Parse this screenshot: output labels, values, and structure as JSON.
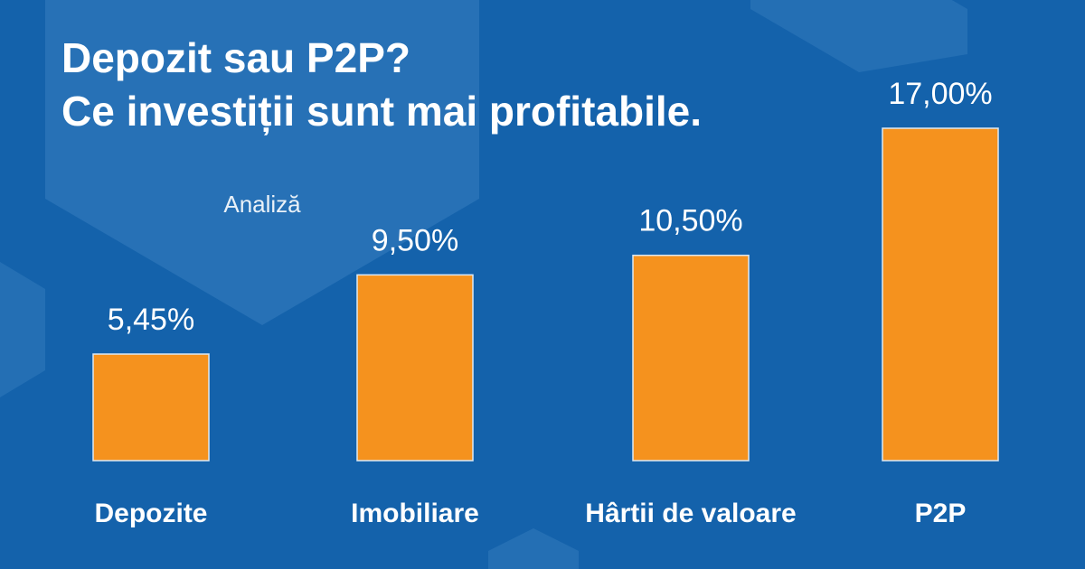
{
  "chart_data": {
    "type": "bar",
    "title": [
      "Depozit sau P2P?",
      "Ce investiții sunt mai profitabile."
    ],
    "subtitle": "Analiză",
    "categories": [
      "Depozite",
      "Imobiliare",
      "Hârtii de valoare",
      "P2P"
    ],
    "values": [
      5.45,
      9.5,
      10.5,
      17
    ],
    "value_labels": [
      "5,45%",
      "9,50%",
      "10,50%",
      "17,00%"
    ],
    "color": "#f5921e"
  }
}
